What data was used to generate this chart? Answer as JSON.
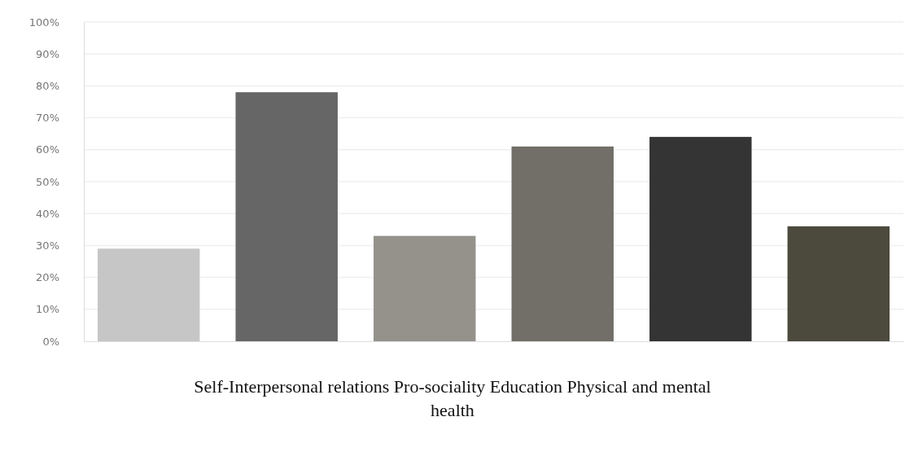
{
  "chart_data": {
    "type": "bar",
    "categories": [
      null,
      null,
      null,
      null,
      null,
      null
    ],
    "values": [
      29,
      78,
      33,
      61,
      64,
      36
    ],
    "colors": [
      "#c6c6c6",
      "#666666",
      "#94928b",
      "#716f67",
      "#343434",
      "#4c4a3c"
    ],
    "ylim": [
      0,
      100
    ],
    "yticks": [
      {
        "value": 0,
        "label": "0%"
      },
      {
        "value": 10,
        "label": "10%"
      },
      {
        "value": 20,
        "label": "20%"
      },
      {
        "value": 30,
        "label": "30%"
      },
      {
        "value": 40,
        "label": "40%"
      },
      {
        "value": 50,
        "label": "50%"
      },
      {
        "value": 60,
        "label": "60%"
      },
      {
        "value": 70,
        "label": "70%"
      },
      {
        "value": 80,
        "label": "80%"
      },
      {
        "value": 90,
        "label": "90%"
      },
      {
        "value": 100,
        "label": "100%"
      }
    ],
    "grid": "y",
    "annotations": [
      "Self-Interpersonal relations Pro-sociality Education Physical and mental health"
    ]
  }
}
